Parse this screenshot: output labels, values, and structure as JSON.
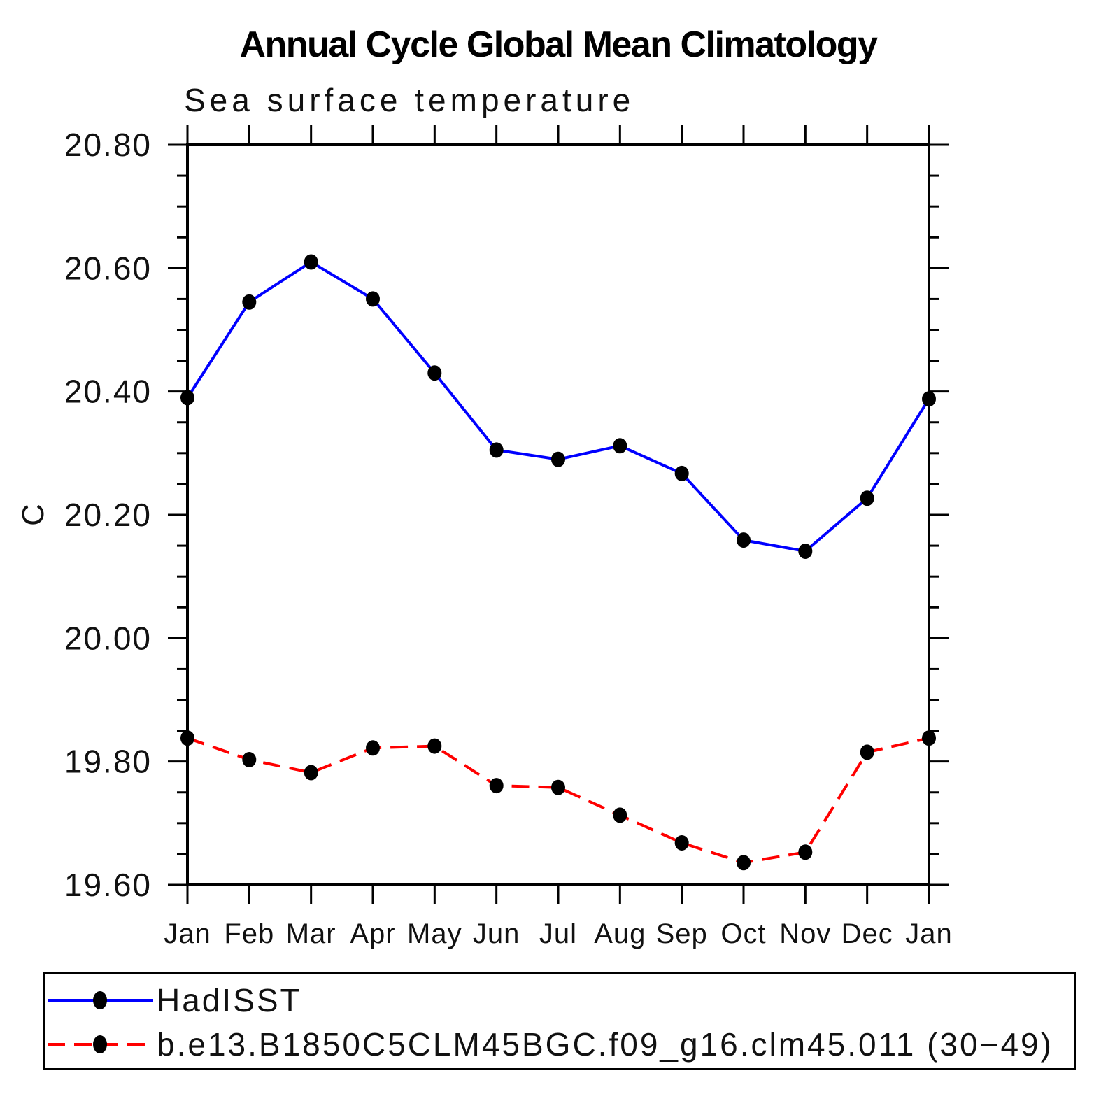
{
  "chart_data": {
    "type": "line",
    "title": "Annual Cycle Global Mean Climatology",
    "subtitle": "Sea surface temperature",
    "ylabel": "C",
    "xlabel": "",
    "x_tick_labels": [
      "Jan",
      "Feb",
      "Mar",
      "Apr",
      "May",
      "Jun",
      "Jul",
      "Aug",
      "Sep",
      "Oct",
      "Nov",
      "Dec",
      "Jan"
    ],
    "ylim": [
      19.6,
      20.8
    ],
    "y_major_step": 0.2,
    "y_minor_step": 0.05,
    "y_tick_labels": [
      "19.60",
      "19.80",
      "20.00",
      "20.20",
      "20.40",
      "20.60",
      "20.80"
    ],
    "grid": false,
    "legend_position": "bottom-box",
    "series": [
      {
        "name": "HadISST",
        "color": "#0000ff",
        "line_style": "solid",
        "marker": "filled-circle",
        "marker_color": "#000000",
        "values": [
          20.39,
          20.545,
          20.61,
          20.55,
          20.43,
          20.305,
          20.29,
          20.312,
          20.267,
          20.159,
          20.141,
          20.227,
          20.388
        ]
      },
      {
        "name": "b.e13.B1850C5CLM45BGC.f09_g16.clm45.011 (30−49)",
        "color": "#ff0000",
        "line_style": "dashed",
        "marker": "filled-circle",
        "marker_color": "#000000",
        "values": [
          19.838,
          19.803,
          19.782,
          19.822,
          19.825,
          19.761,
          19.758,
          19.713,
          19.668,
          19.636,
          19.653,
          19.815,
          19.838
        ]
      }
    ]
  },
  "colors": {
    "background": "#ffffff",
    "axis": "#000000",
    "text": "#111111",
    "series1": "#0000ff",
    "series2": "#ff0000",
    "marker": "#000000"
  }
}
